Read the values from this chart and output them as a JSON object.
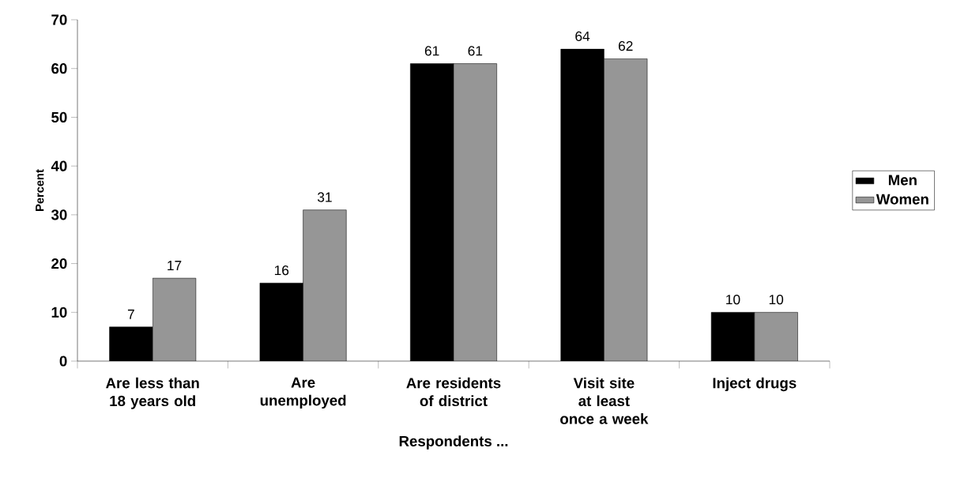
{
  "chart_data": {
    "type": "bar",
    "categories": [
      "Are less than 18 years old",
      "Are unemployed",
      "Are residents of district",
      "Visit site at least once a week",
      "Inject drugs"
    ],
    "series": [
      {
        "name": "Men",
        "color": "#000000",
        "values": [
          7,
          16,
          61,
          64,
          10
        ]
      },
      {
        "name": "Women",
        "color": "#969696",
        "values": [
          17,
          31,
          61,
          62,
          10
        ]
      }
    ],
    "ylim": [
      0,
      70
    ],
    "yticks": [
      0,
      10,
      20,
      30,
      40,
      50,
      60,
      70
    ],
    "xlabel": "Respondents ...",
    "ylabel": "Percent",
    "legend": "right",
    "data_labels": true
  }
}
